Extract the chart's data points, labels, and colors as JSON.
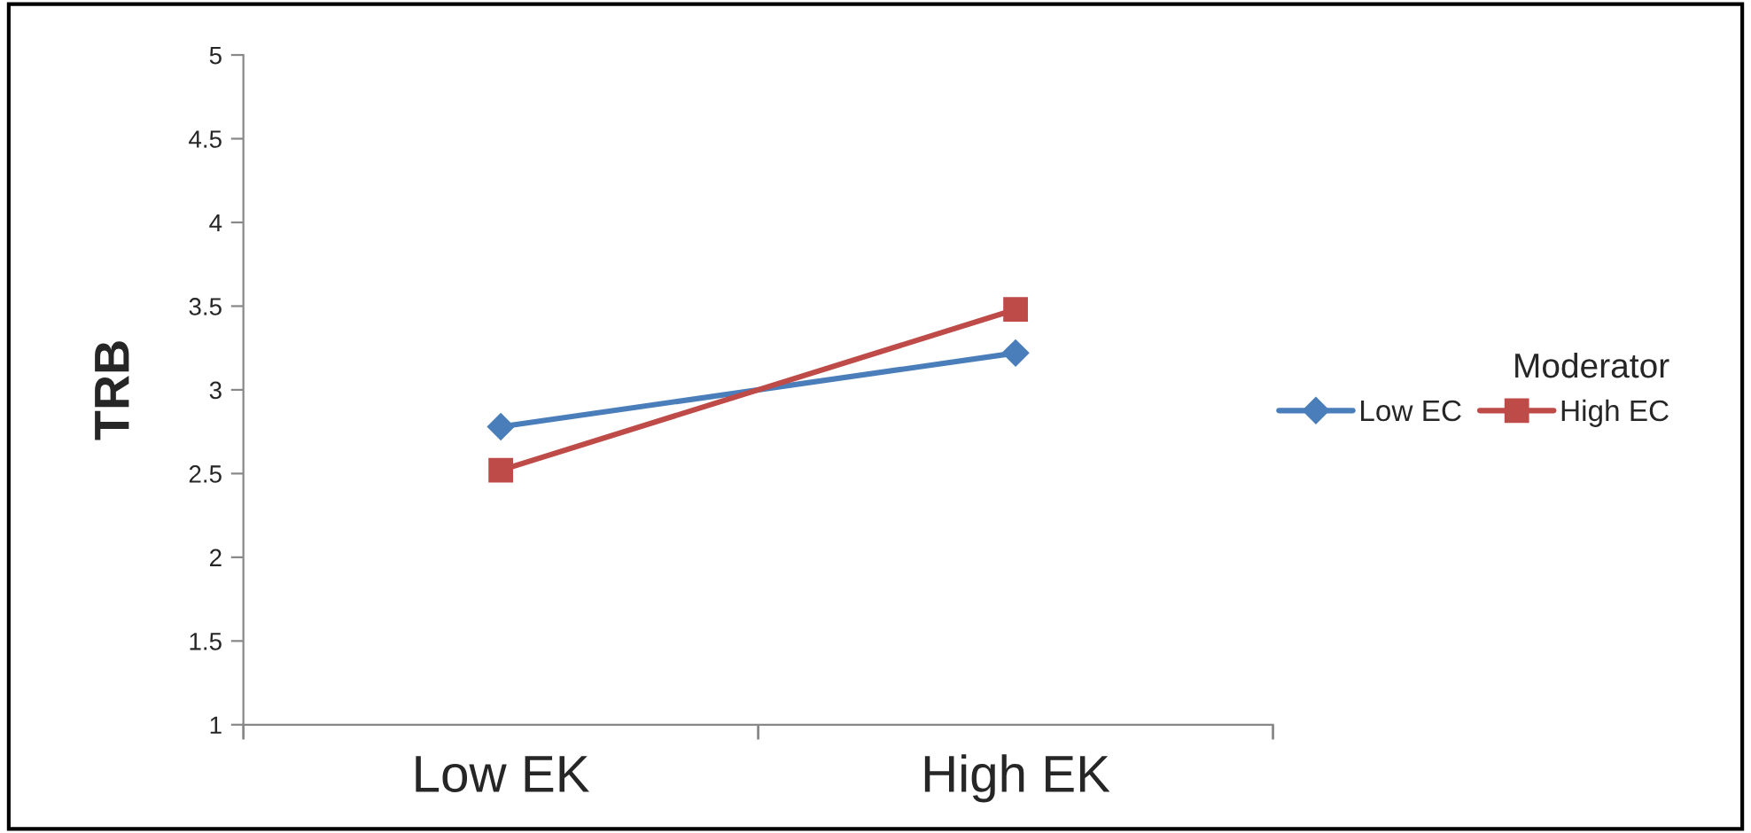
{
  "chart_data": {
    "type": "line",
    "ylabel": "TRB",
    "legend_title": "Moderator",
    "legend": "right",
    "categories": [
      "Low EK",
      "High EK"
    ],
    "series": [
      {
        "name": "Low EC",
        "color": "#4a7ebb",
        "marker": "diamond",
        "values": [
          2.78,
          3.22
        ]
      },
      {
        "name": "High EC",
        "color": "#be4b48",
        "marker": "square",
        "values": [
          2.52,
          3.48
        ]
      }
    ],
    "ylim": [
      1,
      5
    ],
    "yticks": [
      1,
      1.5,
      2,
      2.5,
      3,
      3.5,
      4,
      4.5,
      5
    ],
    "grid": false
  }
}
